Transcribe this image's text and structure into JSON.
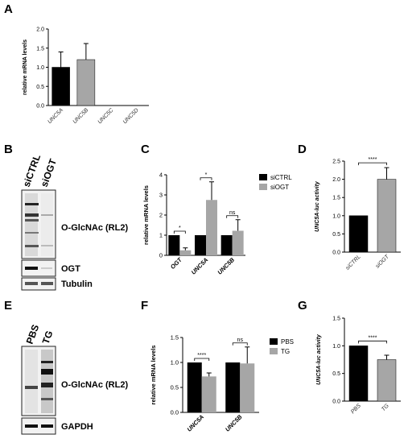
{
  "panels": {
    "A": "A",
    "B": "B",
    "C": "C",
    "D": "D",
    "E": "E",
    "F": "F",
    "G": "G"
  },
  "blots": {
    "b": {
      "lanes": [
        "siCTRL",
        "siOGT"
      ],
      "labels": [
        "O-GlcNAc (RL2)",
        "OGT",
        "Tubulin"
      ]
    },
    "e": {
      "lanes": [
        "PBS",
        "TG"
      ],
      "labels": [
        "O-GlcNAc (RL2)",
        "GAPDH"
      ]
    }
  },
  "colors": {
    "black": "#000000",
    "gray": "#a6a6a6"
  },
  "chart_data": [
    {
      "panel": "A",
      "type": "bar",
      "categories": [
        "UNC5A",
        "UNC5B",
        "UNC5C",
        "UNC5D"
      ],
      "values": [
        1.0,
        1.2,
        0,
        0
      ],
      "errors": [
        0.4,
        0.42,
        0,
        0
      ],
      "bar_colors": [
        "#000000",
        "#a6a6a6",
        "#000000",
        "#000000"
      ],
      "ylabel": "relative mRNA levels",
      "ylim": [
        0,
        2.0
      ],
      "yticks": [
        "0.0",
        "0.5",
        "1.0",
        "1.5",
        "2.0"
      ]
    },
    {
      "panel": "C",
      "type": "bar",
      "categories": [
        "OGT",
        "UNC5A",
        "UNC5B"
      ],
      "series": [
        {
          "name": "siCTRL",
          "color": "#000000",
          "values": [
            1.0,
            1.0,
            1.0
          ],
          "errors": [
            0,
            0,
            0
          ]
        },
        {
          "name": "siOGT",
          "color": "#a6a6a6",
          "values": [
            0.25,
            2.75,
            1.22
          ],
          "errors": [
            0.12,
            0.9,
            0.55
          ]
        }
      ],
      "significance": [
        "*",
        "*",
        "ns"
      ],
      "ylabel": "relative mRNA levels",
      "ylim": [
        0,
        4
      ],
      "yticks": [
        "0",
        "1",
        "2",
        "3",
        "4"
      ],
      "legend": "top-right"
    },
    {
      "panel": "D",
      "type": "bar",
      "categories": [
        "siCTRL",
        "siOGT"
      ],
      "values": [
        1.0,
        2.0
      ],
      "errors": [
        0,
        0.32
      ],
      "bar_colors": [
        "#000000",
        "#a6a6a6"
      ],
      "significance": "****",
      "ylabel": "UNC5A-luc activity",
      "ylim": [
        0,
        2.5
      ],
      "yticks": [
        "0.0",
        "0.5",
        "1.0",
        "1.5",
        "2.0",
        "2.5"
      ]
    },
    {
      "panel": "F",
      "type": "bar",
      "categories": [
        "UNC5A",
        "UNC5B"
      ],
      "series": [
        {
          "name": "PBS",
          "color": "#000000",
          "values": [
            1.0,
            1.0
          ],
          "errors": [
            0,
            0
          ]
        },
        {
          "name": "TG",
          "color": "#a6a6a6",
          "values": [
            0.72,
            0.98
          ],
          "errors": [
            0.07,
            0.33
          ]
        }
      ],
      "significance": [
        "****",
        "ns"
      ],
      "ylabel": "relative mRNA levels",
      "ylim": [
        0,
        1.5
      ],
      "yticks": [
        "0.0",
        "0.5",
        "1.0",
        "1.5"
      ],
      "legend": "top-right"
    },
    {
      "panel": "G",
      "type": "bar",
      "categories": [
        "PBS",
        "TG"
      ],
      "values": [
        1.0,
        0.75
      ],
      "errors": [
        0,
        0.08
      ],
      "bar_colors": [
        "#000000",
        "#a6a6a6"
      ],
      "significance": "****",
      "ylabel": "UNC5A-luc activity",
      "ylim": [
        0,
        1.5
      ],
      "yticks": [
        "0.0",
        "0.5",
        "1.0",
        "1.5"
      ]
    }
  ]
}
